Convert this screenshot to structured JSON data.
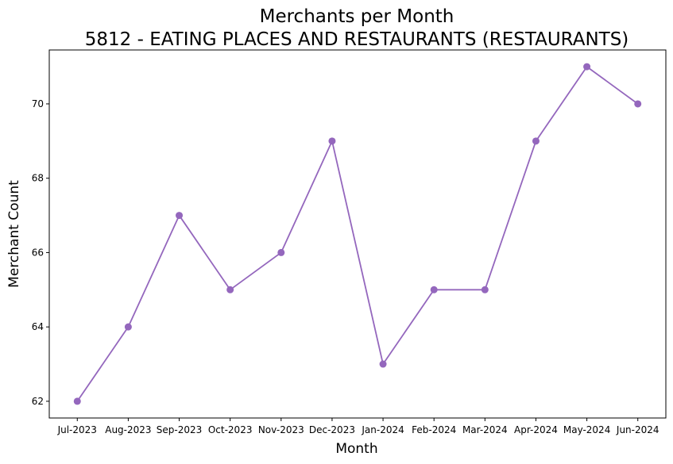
{
  "chart_data": {
    "type": "line",
    "title": "Merchants per Month",
    "subtitle": "5812 - EATING PLACES AND RESTAURANTS (RESTAURANTS)",
    "xlabel": "Month",
    "ylabel": "Merchant Count",
    "categories": [
      "Jul-2023",
      "Aug-2023",
      "Sep-2023",
      "Oct-2023",
      "Nov-2023",
      "Dec-2023",
      "Jan-2024",
      "Feb-2024",
      "Mar-2024",
      "Apr-2024",
      "May-2024",
      "Jun-2024"
    ],
    "series": [
      {
        "values": [
          62,
          64,
          67,
          65,
          66,
          69,
          63,
          65,
          65,
          69,
          71,
          70
        ],
        "color": "#9467bd",
        "marker": "circle"
      }
    ],
    "ylim": [
      61.55,
      71.45
    ],
    "yticks": [
      62,
      64,
      66,
      68,
      70
    ],
    "grid": false,
    "legend": "none"
  }
}
